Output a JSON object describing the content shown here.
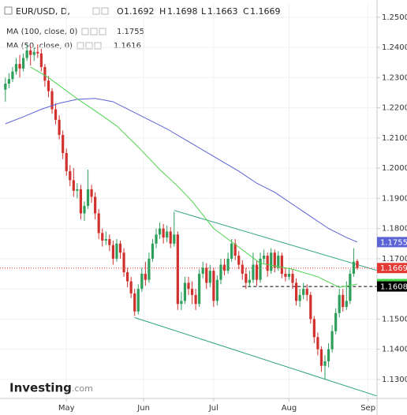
{
  "chart_data": {
    "type": "candlestick",
    "title": "EUR/USD, D,",
    "ohlc_labels": [
      "O",
      "H",
      "L",
      "C"
    ],
    "up_color": "#2e9e5b",
    "down_color": "#d0312d",
    "ohlc": [
      [
        1.226,
        1.23,
        1.222,
        1.228
      ],
      [
        1.228,
        1.2315,
        1.2265,
        1.2295
      ],
      [
        1.2295,
        1.2335,
        1.2285,
        1.232
      ],
      [
        1.232,
        1.2365,
        1.231,
        1.2345
      ],
      [
        1.2345,
        1.2375,
        1.23,
        1.233
      ],
      [
        1.233,
        1.238,
        1.232,
        1.2365
      ],
      [
        1.2365,
        1.241,
        1.2355,
        1.239
      ],
      [
        1.239,
        1.2405,
        1.234,
        1.2375
      ],
      [
        1.2375,
        1.24,
        1.2355,
        1.2385
      ],
      [
        1.2385,
        1.241,
        1.2365,
        1.238
      ],
      [
        1.238,
        1.2395,
        1.232,
        1.2335
      ],
      [
        1.2335,
        1.2345,
        1.227,
        1.229
      ],
      [
        1.229,
        1.2305,
        1.2235,
        1.2255
      ],
      [
        1.2255,
        1.2265,
        1.218,
        1.2195
      ],
      [
        1.2195,
        1.2215,
        1.2145,
        1.216
      ],
      [
        1.216,
        1.2175,
        1.2095,
        1.211
      ],
      [
        1.211,
        1.2125,
        1.203,
        1.205
      ],
      [
        1.205,
        1.2065,
        1.1975,
        1.199
      ],
      [
        1.199,
        1.201,
        1.194,
        1.196
      ],
      [
        1.196,
        1.2,
        1.1905,
        1.1925
      ],
      [
        1.1925,
        1.195,
        1.19,
        1.193
      ],
      [
        1.193,
        1.1945,
        1.183,
        1.185
      ],
      [
        1.185,
        1.189,
        1.1825,
        1.1875
      ],
      [
        1.1875,
        1.1995,
        1.1865,
        1.193
      ],
      [
        1.193,
        1.1945,
        1.1885,
        1.1905
      ],
      [
        1.1905,
        1.192,
        1.183,
        1.185
      ],
      [
        1.185,
        1.1865,
        1.1765,
        1.1785
      ],
      [
        1.1785,
        1.18,
        1.174,
        1.176
      ],
      [
        1.176,
        1.179,
        1.1745,
        1.1765
      ],
      [
        1.1765,
        1.178,
        1.1725,
        1.1745
      ],
      [
        1.1745,
        1.176,
        1.168,
        1.17
      ],
      [
        1.17,
        1.1765,
        1.169,
        1.175
      ],
      [
        1.175,
        1.176,
        1.17,
        1.172
      ],
      [
        1.172,
        1.1735,
        1.164,
        1.1655
      ],
      [
        1.1655,
        1.167,
        1.1605,
        1.1625
      ],
      [
        1.1625,
        1.164,
        1.157,
        1.1585
      ],
      [
        1.1585,
        1.16,
        1.151,
        1.1525
      ],
      [
        1.1525,
        1.1615,
        1.1515,
        1.16
      ],
      [
        1.16,
        1.167,
        1.159,
        1.165
      ],
      [
        1.165,
        1.169,
        1.161,
        1.163
      ],
      [
        1.163,
        1.172,
        1.162,
        1.17
      ],
      [
        1.17,
        1.1765,
        1.169,
        1.175
      ],
      [
        1.175,
        1.18,
        1.1735,
        1.178
      ],
      [
        1.178,
        1.182,
        1.1765,
        1.18
      ],
      [
        1.18,
        1.1815,
        1.175,
        1.177
      ],
      [
        1.177,
        1.181,
        1.1755,
        1.179
      ],
      [
        1.179,
        1.1805,
        1.1735,
        1.175
      ],
      [
        1.175,
        1.1855,
        1.174,
        1.178
      ],
      [
        1.178,
        1.179,
        1.153,
        1.155
      ],
      [
        1.155,
        1.159,
        1.153,
        1.156
      ],
      [
        1.156,
        1.164,
        1.155,
        1.162
      ],
      [
        1.162,
        1.164,
        1.158,
        1.16
      ],
      [
        1.16,
        1.1625,
        1.155,
        1.158
      ],
      [
        1.158,
        1.16,
        1.153,
        1.155
      ],
      [
        1.155,
        1.1665,
        1.154,
        1.165
      ],
      [
        1.165,
        1.169,
        1.1635,
        1.167
      ],
      [
        1.167,
        1.1685,
        1.16,
        1.162
      ],
      [
        1.162,
        1.168,
        1.1605,
        1.166
      ],
      [
        1.166,
        1.167,
        1.154,
        1.156
      ],
      [
        1.156,
        1.1645,
        1.1545,
        1.163
      ],
      [
        1.163,
        1.17,
        1.1615,
        1.168
      ],
      [
        1.168,
        1.17,
        1.1645,
        1.166
      ],
      [
        1.166,
        1.172,
        1.165,
        1.17
      ],
      [
        1.17,
        1.1765,
        1.169,
        1.175
      ],
      [
        1.175,
        1.1765,
        1.1695,
        1.171
      ],
      [
        1.171,
        1.1725,
        1.1665,
        1.168
      ],
      [
        1.168,
        1.1695,
        1.163,
        1.165
      ],
      [
        1.165,
        1.167,
        1.16,
        1.162
      ],
      [
        1.162,
        1.166,
        1.1605,
        1.163
      ],
      [
        1.163,
        1.172,
        1.162,
        1.168
      ],
      [
        1.168,
        1.1695,
        1.161,
        1.163
      ],
      [
        1.163,
        1.172,
        1.162,
        1.17
      ],
      [
        1.17,
        1.173,
        1.1685,
        1.171
      ],
      [
        1.171,
        1.172,
        1.164,
        1.166
      ],
      [
        1.166,
        1.1735,
        1.165,
        1.172
      ],
      [
        1.172,
        1.173,
        1.1655,
        1.167
      ],
      [
        1.167,
        1.1725,
        1.166,
        1.171
      ],
      [
        1.171,
        1.172,
        1.1635,
        1.165
      ],
      [
        1.165,
        1.167,
        1.1625,
        1.164
      ],
      [
        1.164,
        1.167,
        1.163,
        1.165
      ],
      [
        1.165,
        1.1665,
        1.16,
        1.162
      ],
      [
        1.162,
        1.1635,
        1.1545,
        1.156
      ],
      [
        1.156,
        1.16,
        1.154,
        1.158
      ],
      [
        1.158,
        1.162,
        1.1565,
        1.16
      ],
      [
        1.16,
        1.1615,
        1.156,
        1.158
      ],
      [
        1.158,
        1.159,
        1.1485,
        1.15
      ],
      [
        1.15,
        1.151,
        1.142,
        1.144
      ],
      [
        1.144,
        1.1455,
        1.138,
        1.14
      ],
      [
        1.14,
        1.141,
        1.1325,
        1.1345
      ],
      [
        1.1345,
        1.138,
        1.13,
        1.136
      ],
      [
        1.136,
        1.142,
        1.134,
        1.14
      ],
      [
        1.14,
        1.148,
        1.139,
        1.146
      ],
      [
        1.146,
        1.1535,
        1.145,
        1.152
      ],
      [
        1.152,
        1.16,
        1.1505,
        1.158
      ],
      [
        1.158,
        1.16,
        1.1525,
        1.154
      ],
      [
        1.154,
        1.1625,
        1.153,
        1.156
      ],
      [
        1.156,
        1.1665,
        1.155,
        1.165
      ],
      [
        1.165,
        1.1735,
        1.164,
        1.169
      ],
      [
        1.1692,
        1.1698,
        1.1663,
        1.1669
      ]
    ],
    "series": [
      {
        "name": "MA (100, close, 0)",
        "color": "#5b63d6",
        "x": [
          0,
          5,
          10,
          15,
          20,
          25,
          30,
          35,
          40,
          45,
          50,
          55,
          60,
          65,
          70,
          75,
          80,
          85,
          90,
          95,
          98
        ],
        "values": [
          1.2147,
          1.217,
          1.2195,
          1.2215,
          1.2228,
          1.2231,
          1.222,
          1.219,
          1.216,
          1.213,
          1.2095,
          1.206,
          1.2025,
          1.199,
          1.195,
          1.192,
          1.188,
          1.184,
          1.18,
          1.177,
          1.1755
        ]
      },
      {
        "name": "MA (50, close, 0)",
        "color": "#4cd44c",
        "x": [
          7,
          12,
          20,
          25,
          31,
          37,
          43,
          48,
          52,
          58,
          64,
          71,
          80,
          87,
          93,
          98
        ],
        "values": [
          1.2335,
          1.23,
          1.223,
          1.219,
          1.214,
          1.207,
          1.1995,
          1.194,
          1.189,
          1.18,
          1.1747,
          1.1685,
          1.1665,
          1.164,
          1.1605,
          1.1616
        ]
      }
    ],
    "hline": {
      "value": 1.1608,
      "color": "#000000",
      "start": 66
    },
    "last_line_color": "#e53935",
    "trendlines": [
      {
        "x": [
          47,
          103.5
        ],
        "values": [
          1.186,
          1.1661
        ],
        "color": "#2ba37f"
      },
      {
        "x": [
          36,
          103.5
        ],
        "values": [
          1.1505,
          1.1245
        ],
        "color": "#2ba37f"
      }
    ],
    "xlim": [
      -1.5,
      103.5
    ],
    "xticks": [
      {
        "value": 17,
        "label": "May"
      },
      {
        "value": 38.5,
        "label": "Jun"
      },
      {
        "value": 58,
        "label": "Jul"
      },
      {
        "value": 79,
        "label": "Aug"
      },
      {
        "value": 101,
        "label": "Sep"
      }
    ],
    "ylim": [
      1.1237,
      1.2544
    ],
    "yticks": [
      {
        "value": 1.13,
        "label": "1.1300"
      },
      {
        "value": 1.14,
        "label": "1.1400"
      },
      {
        "value": 1.15,
        "label": "1.1500"
      },
      {
        "value": 1.16,
        "label": "1.1600"
      },
      {
        "value": 1.17,
        "label": "1.1700"
      },
      {
        "value": 1.18,
        "label": "1.1800"
      },
      {
        "value": 1.19,
        "label": "1.1900"
      },
      {
        "value": 1.2,
        "label": "1.2000"
      },
      {
        "value": 1.21,
        "label": "1.2100"
      },
      {
        "value": 1.22,
        "label": "1.2200"
      },
      {
        "value": 1.23,
        "label": "1.2300"
      },
      {
        "value": 1.24,
        "label": "1.2400"
      },
      {
        "value": 1.25,
        "label": "1.2500"
      }
    ],
    "grid": true,
    "brand": "Investing",
    "brand_suffix": ".com"
  }
}
